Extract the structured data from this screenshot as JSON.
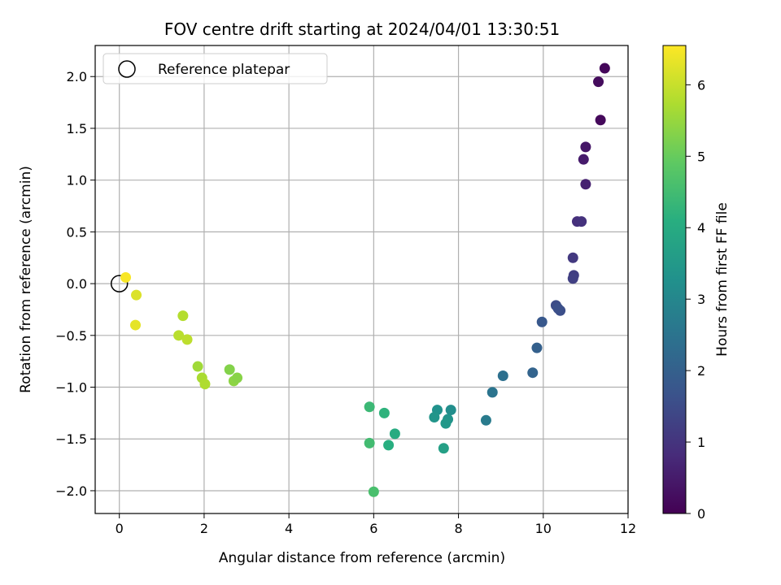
{
  "chart_data": {
    "type": "scatter",
    "title": "FOV centre drift starting at 2024/04/01 13:30:51",
    "xlabel": "Angular distance from reference (arcmin)",
    "ylabel": "Rotation from reference (arcmin)",
    "xlim": [
      -0.57,
      12.0
    ],
    "ylim": [
      -2.22,
      2.3
    ],
    "xticks": [
      0,
      2,
      4,
      6,
      8,
      10,
      12
    ],
    "yticks": [
      -2.0,
      -1.5,
      -1.0,
      -0.5,
      0.0,
      0.5,
      1.0,
      1.5,
      2.0
    ],
    "xtick_labels": [
      "0",
      "2",
      "4",
      "6",
      "8",
      "10",
      "12"
    ],
    "ytick_labels": [
      "−2.0",
      "−1.5",
      "−1.0",
      "−0.5",
      "0.0",
      "0.5",
      "1.0",
      "1.5",
      "2.0"
    ],
    "grid": true,
    "legend": {
      "position": "top-left",
      "entries": [
        "Reference platepar"
      ]
    },
    "reference_point": {
      "x": 0.0,
      "y": 0.0
    },
    "colorbar": {
      "label": "Hours from first FF file",
      "range": [
        0,
        6.55
      ],
      "ticks": [
        0,
        1,
        2,
        3,
        4,
        5,
        6
      ],
      "tick_labels": [
        "0",
        "1",
        "2",
        "3",
        "4",
        "5",
        "6"
      ],
      "colormap": "viridis"
    },
    "points": [
      {
        "x": 11.45,
        "y": 2.08,
        "c": 0.1
      },
      {
        "x": 11.3,
        "y": 1.95,
        "c": 0.2
      },
      {
        "x": 11.35,
        "y": 1.58,
        "c": 0.15
      },
      {
        "x": 11.0,
        "y": 1.32,
        "c": 0.4
      },
      {
        "x": 10.95,
        "y": 1.2,
        "c": 0.5
      },
      {
        "x": 11.0,
        "y": 0.96,
        "c": 0.6
      },
      {
        "x": 10.8,
        "y": 0.6,
        "c": 0.9
      },
      {
        "x": 10.9,
        "y": 0.6,
        "c": 0.95
      },
      {
        "x": 10.7,
        "y": 0.25,
        "c": 1.1
      },
      {
        "x": 10.72,
        "y": 0.08,
        "c": 1.2
      },
      {
        "x": 10.7,
        "y": 0.05,
        "c": 1.25
      },
      {
        "x": 10.3,
        "y": -0.21,
        "c": 1.5
      },
      {
        "x": 10.4,
        "y": -0.26,
        "c": 1.55
      },
      {
        "x": 10.35,
        "y": -0.24,
        "c": 1.6
      },
      {
        "x": 9.97,
        "y": -0.37,
        "c": 1.8
      },
      {
        "x": 9.85,
        "y": -0.62,
        "c": 2.0
      },
      {
        "x": 9.75,
        "y": -0.86,
        "c": 2.1
      },
      {
        "x": 9.05,
        "y": -0.89,
        "c": 2.4
      },
      {
        "x": 8.8,
        "y": -1.05,
        "c": 2.5
      },
      {
        "x": 8.65,
        "y": -1.32,
        "c": 2.7
      },
      {
        "x": 7.82,
        "y": -1.22,
        "c": 3.2
      },
      {
        "x": 7.5,
        "y": -1.22,
        "c": 3.3
      },
      {
        "x": 7.43,
        "y": -1.29,
        "c": 3.4
      },
      {
        "x": 7.75,
        "y": -1.31,
        "c": 3.35
      },
      {
        "x": 7.7,
        "y": -1.35,
        "c": 3.45
      },
      {
        "x": 7.65,
        "y": -1.59,
        "c": 3.7
      },
      {
        "x": 6.5,
        "y": -1.45,
        "c": 4.0
      },
      {
        "x": 6.35,
        "y": -1.56,
        "c": 4.1
      },
      {
        "x": 6.25,
        "y": -1.25,
        "c": 4.2
      },
      {
        "x": 5.9,
        "y": -1.19,
        "c": 4.4
      },
      {
        "x": 5.9,
        "y": -1.54,
        "c": 4.5
      },
      {
        "x": 6.0,
        "y": -2.01,
        "c": 4.6
      },
      {
        "x": 2.6,
        "y": -0.83,
        "c": 5.3
      },
      {
        "x": 2.7,
        "y": -0.94,
        "c": 5.4
      },
      {
        "x": 2.78,
        "y": -0.91,
        "c": 5.35
      },
      {
        "x": 1.85,
        "y": -0.8,
        "c": 5.6
      },
      {
        "x": 1.95,
        "y": -0.91,
        "c": 5.7
      },
      {
        "x": 2.02,
        "y": -0.97,
        "c": 5.75
      },
      {
        "x": 1.5,
        "y": -0.31,
        "c": 5.8
      },
      {
        "x": 1.4,
        "y": -0.5,
        "c": 5.85
      },
      {
        "x": 1.6,
        "y": -0.54,
        "c": 5.9
      },
      {
        "x": 0.4,
        "y": -0.11,
        "c": 6.2
      },
      {
        "x": 0.38,
        "y": -0.4,
        "c": 6.3
      },
      {
        "x": 0.15,
        "y": 0.06,
        "c": 6.5
      }
    ]
  }
}
